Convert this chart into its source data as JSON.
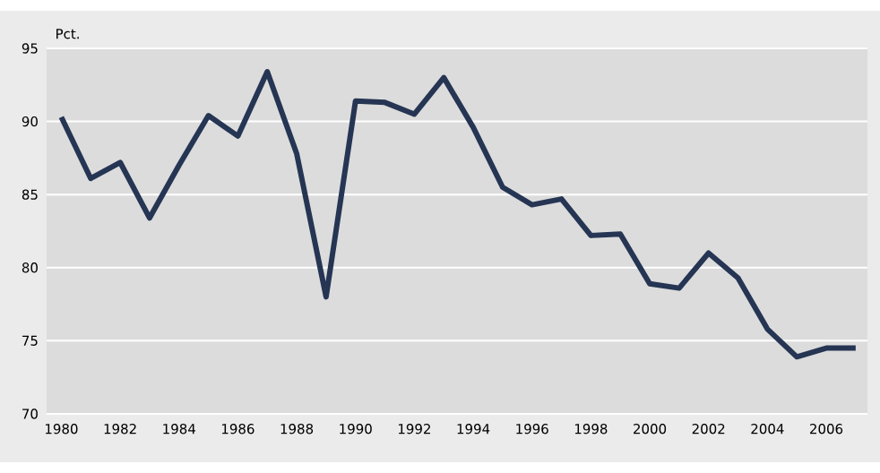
{
  "chart_data": {
    "type": "line",
    "ylabel": "Pct.",
    "x": [
      1980,
      1981,
      1982,
      1983,
      1984,
      1985,
      1986,
      1987,
      1988,
      1989,
      1990,
      1991,
      1992,
      1993,
      1994,
      1995,
      1996,
      1997,
      1998,
      1999,
      2000,
      2001,
      2002,
      2003,
      2004,
      2005,
      2006,
      2007
    ],
    "series": [
      {
        "color": "#253553",
        "values": [
          90.3,
          86.1,
          87.2,
          83.4,
          87.0,
          90.4,
          89.0,
          93.4,
          87.8,
          78.0,
          91.4,
          91.3,
          90.5,
          93.0,
          89.6,
          85.5,
          84.3,
          84.7,
          82.2,
          82.3,
          78.9,
          78.6,
          81.0,
          79.3,
          75.8,
          73.9,
          74.5,
          74.5
        ]
      }
    ],
    "xlim": [
      1979.5,
      2007.4
    ],
    "ylim": [
      70,
      95
    ],
    "xticks": [
      1980,
      1982,
      1984,
      1986,
      1988,
      1990,
      1992,
      1994,
      1996,
      1998,
      2000,
      2002,
      2004,
      2006
    ],
    "yticks": [
      70,
      75,
      80,
      85,
      90,
      95
    ],
    "grid": "y",
    "marker": "none",
    "line_style": "solid"
  }
}
